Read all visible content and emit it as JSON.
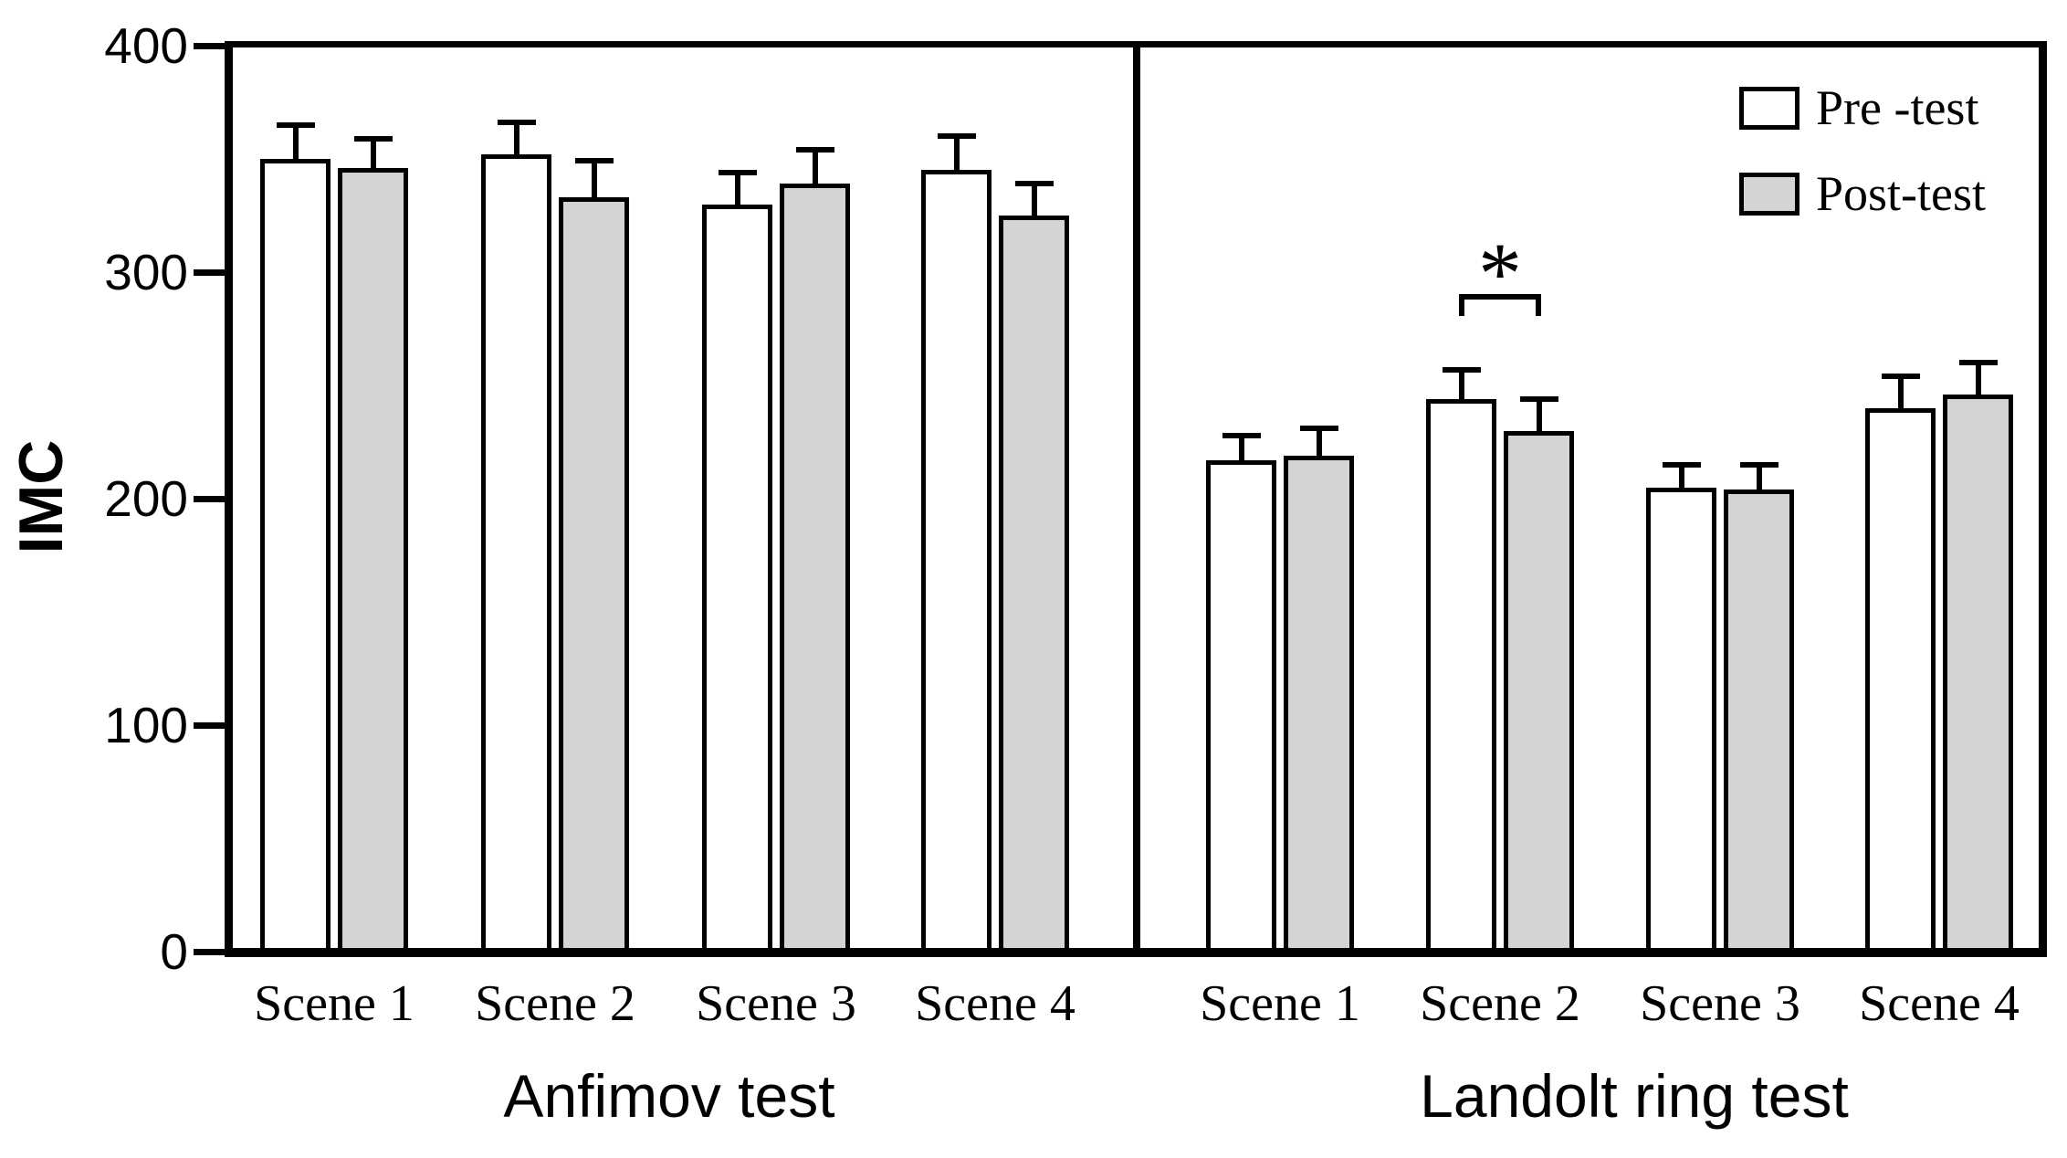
{
  "chart_data": {
    "type": "bar",
    "title": "",
    "ylabel": "IMC",
    "ylim": [
      0,
      400
    ],
    "yticks": [
      0,
      100,
      200,
      300,
      400
    ],
    "grid": false,
    "legend_position": "top-right",
    "legend": [
      {
        "label": "Pre -test",
        "fill": "#ffffff"
      },
      {
        "label": "Post-test",
        "fill": "#d4d4d4"
      }
    ],
    "panels": [
      {
        "name": "Anfimov test",
        "categories": [
          "Scene 1",
          "Scene 2",
          "Scene 3",
          "Scene 4"
        ],
        "series": [
          {
            "name": "Pre -test",
            "values": [
              350,
              352,
              330,
              345
            ],
            "errors": [
              15,
              14,
              14,
              15
            ]
          },
          {
            "name": "Post-test",
            "values": [
              346,
              333,
              339,
              325
            ],
            "errors": [
              13,
              16,
              15,
              14
            ]
          }
        ]
      },
      {
        "name": "Landolt ring test",
        "categories": [
          "Scene 1",
          "Scene 2",
          "Scene 3",
          "Scene 4"
        ],
        "series": [
          {
            "name": "Pre -test",
            "values": [
              217,
              244,
              205,
              240
            ],
            "errors": [
              11,
              13,
              10,
              14
            ]
          },
          {
            "name": "Post-test",
            "values": [
              219,
              230,
              204,
              246
            ],
            "errors": [
              12,
              14,
              11,
              14
            ]
          }
        ],
        "annotation": {
          "symbol": "*",
          "category_index": 1,
          "meaning": "significant difference between Pre -test and Post-test"
        }
      }
    ],
    "colors": {
      "pre_fill": "#ffffff",
      "post_fill": "#d4d4d4",
      "stroke": "#000000",
      "background": "#ffffff"
    }
  }
}
